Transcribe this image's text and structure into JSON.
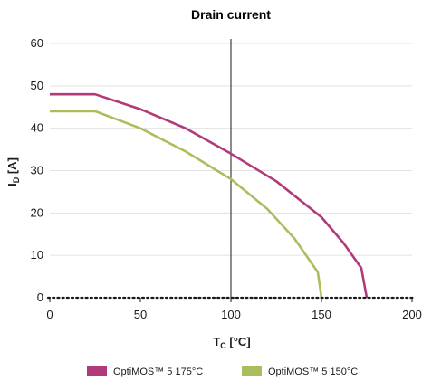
{
  "chart_data": {
    "type": "line",
    "title": "Drain current",
    "xlabel": {
      "main": "T",
      "sub": "C",
      "unit": " [°C]"
    },
    "ylabel": {
      "main": "I",
      "sub": "D",
      "unit": " [A]"
    },
    "xlim": [
      0,
      200
    ],
    "ylim": [
      0,
      60
    ],
    "xticks": [
      "0",
      "50",
      "100",
      "150",
      "200"
    ],
    "yticks": [
      "0",
      "10",
      "20",
      "30",
      "40",
      "50",
      "60"
    ],
    "grid": "horizontal",
    "legend_position": "bottom",
    "series": [
      {
        "name": "OptiMOS™ 5 175°C",
        "color": "#b03a7a",
        "points": [
          [
            0,
            48
          ],
          [
            25,
            48
          ],
          [
            50,
            44.5
          ],
          [
            75,
            40
          ],
          [
            100,
            34
          ],
          [
            125,
            27.5
          ],
          [
            150,
            19
          ],
          [
            162,
            13
          ],
          [
            172,
            7
          ],
          [
            175,
            0
          ]
        ]
      },
      {
        "name": "OptiMOS™ 5 150°C",
        "color": "#a9bf5e",
        "points": [
          [
            0,
            44
          ],
          [
            25,
            44
          ],
          [
            50,
            40
          ],
          [
            75,
            34.5
          ],
          [
            100,
            28
          ],
          [
            120,
            21
          ],
          [
            135,
            14
          ],
          [
            148,
            6
          ],
          [
            150,
            0
          ]
        ]
      }
    ],
    "reference_line_x": 100,
    "baseline_style": "dotted"
  }
}
